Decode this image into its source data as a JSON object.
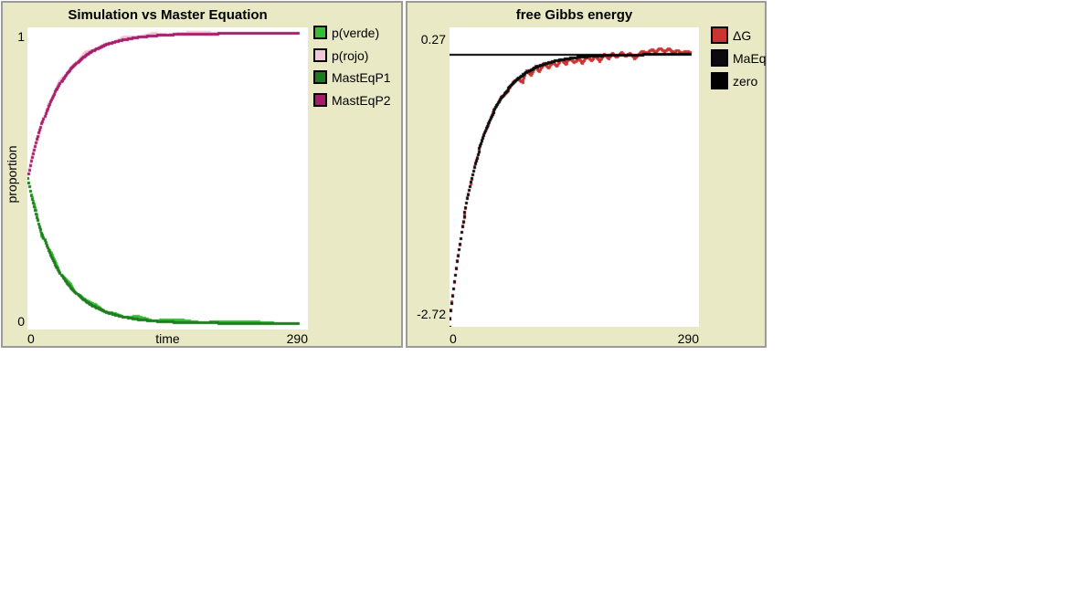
{
  "ui": {
    "widget_background": "#e9e9c5",
    "widget_border": "#9b9b9b",
    "plot_background": "#ffffff"
  },
  "chart_data": [
    {
      "type": "line",
      "title": "Simulation vs Master Equation",
      "xlabel": "time",
      "ylabel": "proportion",
      "xlim": [
        0,
        290
      ],
      "ylim": [
        0,
        1
      ],
      "x_min_label": "0",
      "x_max_label": "290",
      "y_min_label": "0",
      "y_max_label": "1",
      "grid": false,
      "legend_position": "right",
      "legend": [
        {
          "label": "p(verde)",
          "color": "#35bd35"
        },
        {
          "label": "p(rojo)",
          "color": "#f2c6d4"
        },
        {
          "label": "MastEqP1",
          "color": "#1e7a1e"
        },
        {
          "label": "MastEqP2",
          "color": "#a51c69"
        }
      ],
      "series": [
        {
          "name": "p(rojo)",
          "color": "#f2c6d4",
          "marker": 3,
          "x": [
            0,
            3,
            6,
            9,
            12,
            15,
            18,
            21,
            25,
            30,
            35,
            40,
            45,
            50,
            60,
            70,
            80,
            90,
            100,
            115,
            130,
            145,
            160,
            180,
            200,
            230,
            260,
            280
          ],
          "y": [
            0.5,
            0.548,
            0.592,
            0.618,
            0.638,
            0.684,
            0.706,
            0.743,
            0.76,
            0.797,
            0.829,
            0.842,
            0.866,
            0.879,
            0.918,
            0.926,
            0.944,
            0.951,
            0.967,
            0.967,
            0.98,
            0.975,
            0.981,
            0.984,
            0.979,
            0.98,
            0.98,
            0.98
          ]
        },
        {
          "name": "p(verde)",
          "color": "#35bd35",
          "marker": 3,
          "x": [
            0,
            3,
            6,
            9,
            12,
            15,
            18,
            21,
            25,
            30,
            35,
            40,
            45,
            50,
            60,
            70,
            80,
            90,
            100,
            115,
            130,
            145,
            160,
            180,
            200,
            230,
            260,
            280
          ],
          "y": [
            0.5,
            0.457,
            0.425,
            0.394,
            0.35,
            0.31,
            0.298,
            0.269,
            0.252,
            0.218,
            0.181,
            0.164,
            0.15,
            0.121,
            0.098,
            0.082,
            0.059,
            0.053,
            0.041,
            0.043,
            0.028,
            0.033,
            0.031,
            0.022,
            0.027,
            0.026,
            0.02,
            0.02
          ]
        },
        {
          "name": "MastEqP2",
          "color": "#a51c69",
          "marker": 3,
          "x": [
            0,
            3,
            6,
            9,
            12,
            15,
            18,
            21,
            25,
            30,
            35,
            40,
            45,
            50,
            60,
            70,
            80,
            90,
            100,
            115,
            130,
            145,
            160,
            180,
            200,
            230,
            260,
            280
          ],
          "y": [
            0.5,
            0.543,
            0.582,
            0.618,
            0.65,
            0.68,
            0.706,
            0.731,
            0.76,
            0.792,
            0.819,
            0.842,
            0.862,
            0.879,
            0.906,
            0.926,
            0.941,
            0.951,
            0.959,
            0.967,
            0.972,
            0.975,
            0.977,
            0.978,
            0.979,
            0.98,
            0.98,
            0.98
          ]
        },
        {
          "name": "MastEqP1",
          "color": "#1e7a1e",
          "marker": 3,
          "x": [
            0,
            3,
            6,
            9,
            12,
            15,
            18,
            21,
            25,
            30,
            35,
            40,
            45,
            50,
            60,
            70,
            80,
            90,
            100,
            115,
            130,
            145,
            160,
            180,
            200,
            230,
            260,
            280
          ],
          "y": [
            0.5,
            0.457,
            0.418,
            0.382,
            0.35,
            0.32,
            0.294,
            0.269,
            0.24,
            0.208,
            0.181,
            0.158,
            0.138,
            0.121,
            0.094,
            0.074,
            0.059,
            0.049,
            0.041,
            0.033,
            0.028,
            0.025,
            0.023,
            0.022,
            0.021,
            0.02,
            0.02,
            0.02
          ]
        }
      ]
    },
    {
      "type": "line",
      "title": "free Gibbs energy",
      "xlabel": "",
      "ylabel": "",
      "xlim": [
        0,
        290
      ],
      "ylim": [
        -2.72,
        0.27
      ],
      "x_min_label": "0",
      "x_max_label": "290",
      "y_min_label": "-2.72",
      "y_max_label": "0.27",
      "grid": false,
      "legend_position": "right",
      "legend": [
        {
          "label": "ΔG",
          "color": "#cc3432"
        },
        {
          "label": "MaEq",
          "color": "#0a0a0a"
        },
        {
          "label": "zero",
          "color": "#000000"
        }
      ],
      "series": [
        {
          "name": "ΔG",
          "color": "#cc3432",
          "marker": 3,
          "x": [
            0,
            3,
            6,
            9,
            12,
            15,
            18,
            21,
            25,
            30,
            35,
            40,
            45,
            50,
            55,
            60,
            65,
            70,
            75,
            80,
            85,
            90,
            95,
            100,
            105,
            110,
            115,
            120,
            125,
            130,
            135,
            140,
            145,
            150,
            155,
            160,
            165,
            170,
            175,
            180,
            185,
            190,
            195,
            200,
            205,
            210,
            215,
            220,
            225,
            230,
            235,
            240,
            245,
            250,
            255,
            260,
            265,
            270,
            275,
            280
          ],
          "y": [
            -2.72,
            -2.47,
            -2.28,
            -2.06,
            -1.9,
            -1.71,
            -1.59,
            -1.43,
            -1.29,
            -1.08,
            -0.95,
            -0.8,
            -0.71,
            -0.58,
            -0.52,
            -0.43,
            -0.39,
            -0.34,
            -0.27,
            -0.25,
            -0.28,
            -0.16,
            -0.21,
            -0.12,
            -0.17,
            -0.09,
            -0.14,
            -0.07,
            -0.12,
            -0.05,
            -0.1,
            -0.04,
            -0.08,
            -0.05,
            -0.09,
            -0.02,
            -0.06,
            -0.01,
            -0.07,
            0.0,
            -0.04,
            0.01,
            -0.03,
            0.02,
            -0.02,
            0.01,
            -0.04,
            0.0,
            0.03,
            0.01,
            0.05,
            0.02,
            0.06,
            0.03,
            0.06,
            0.02,
            0.04,
            0.01,
            0.03,
            0.02
          ]
        },
        {
          "name": "MaEq",
          "color": "#0a0a0a",
          "marker": 3,
          "x": [
            0,
            3,
            6,
            9,
            12,
            15,
            18,
            21,
            25,
            30,
            35,
            40,
            45,
            50,
            55,
            60,
            70,
            80,
            90,
            100,
            115,
            130,
            145,
            160,
            180,
            200,
            230,
            260,
            280
          ],
          "y": [
            -2.72,
            -2.484,
            -2.268,
            -2.071,
            -1.891,
            -1.726,
            -1.576,
            -1.439,
            -1.276,
            -1.096,
            -0.941,
            -0.809,
            -0.695,
            -0.597,
            -0.513,
            -0.44,
            -0.325,
            -0.24,
            -0.177,
            -0.131,
            -0.083,
            -0.053,
            -0.034,
            -0.022,
            -0.012,
            -0.006,
            -0.003,
            -0.001,
            -0.001
          ]
        },
        {
          "name": "zero",
          "color": "#000000",
          "style": "hline",
          "thickness": 2,
          "x": [
            0,
            280
          ],
          "y0": 0
        }
      ]
    }
  ]
}
